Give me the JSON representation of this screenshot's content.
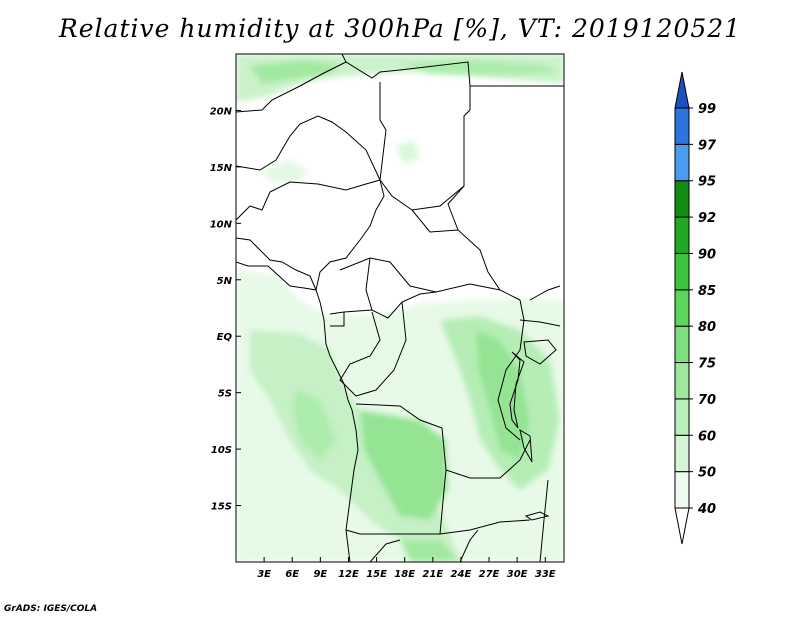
{
  "title": "Relative humidity at 300hPa [%], VT: 2019120521",
  "credit": "GrADS: IGES/COLA",
  "map": {
    "lon_range": [
      0,
      35
    ],
    "lat_range": [
      -20,
      25
    ],
    "lon_ticks": [
      {
        "value": 3,
        "label": "3E"
      },
      {
        "value": 6,
        "label": "6E"
      },
      {
        "value": 9,
        "label": "9E"
      },
      {
        "value": 12,
        "label": "12E"
      },
      {
        "value": 15,
        "label": "15E"
      },
      {
        "value": 18,
        "label": "18E"
      },
      {
        "value": 21,
        "label": "21E"
      },
      {
        "value": 24,
        "label": "24E"
      },
      {
        "value": 27,
        "label": "27E"
      },
      {
        "value": 30,
        "label": "30E"
      },
      {
        "value": 33,
        "label": "33E"
      }
    ],
    "lat_ticks": [
      {
        "value": 20,
        "label": "20N"
      },
      {
        "value": 15,
        "label": "15N"
      },
      {
        "value": 10,
        "label": "10N"
      },
      {
        "value": 5,
        "label": "5N"
      },
      {
        "value": 0,
        "label": "EQ"
      },
      {
        "value": -5,
        "label": "5S"
      },
      {
        "value": -10,
        "label": "10S"
      },
      {
        "value": -15,
        "label": "15S"
      }
    ]
  },
  "colorbar": {
    "levels": [
      "40",
      "50",
      "60",
      "70",
      "75",
      "80",
      "85",
      "90",
      "92",
      "95",
      "97",
      "99"
    ],
    "colors": [
      "#ffffff",
      "#eefbee",
      "#d6f5d6",
      "#b9efb9",
      "#9de89d",
      "#7ddf7d",
      "#5bd55b",
      "#3cc53c",
      "#22a822",
      "#128c12",
      "#4a9cf0",
      "#2c74e0",
      "#1c52c0"
    ]
  }
}
